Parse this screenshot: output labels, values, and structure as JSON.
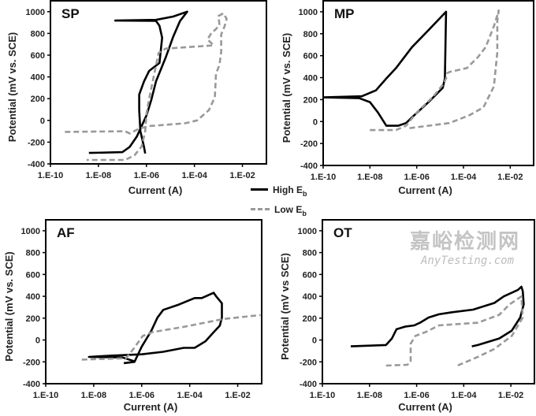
{
  "chart_data": [
    {
      "type": "line",
      "title": "SP",
      "xlabel": "Current (A)",
      "ylabel": "Potential (mV vs. SCE)",
      "xscale": "log",
      "xlim": [
        1e-10,
        0.1
      ],
      "ylim": [
        -400,
        1100
      ],
      "xticks": [
        1e-10,
        1e-08,
        1e-06,
        0.0001,
        0.01
      ],
      "xtick_labels": [
        "1.E-10",
        "1.E-08",
        "1.E-06",
        "1.E-04",
        "1.E-02"
      ],
      "yticks": [
        -400,
        -200,
        0,
        200,
        400,
        600,
        800,
        1000
      ],
      "ytick_labels": [
        "-400",
        "-200",
        "0",
        "200",
        "400",
        "600",
        "800",
        "1000"
      ],
      "grid": false,
      "series": [
        {
          "name": "High Eb",
          "style": "solid",
          "color": "#000000",
          "x": [
            4e-09,
            1e-07,
            2e-07,
            4e-07,
            1e-06,
            1.6e-06,
            2.5e-06,
            6.3e-06,
            1.3e-05,
            2.5e-05,
            5e-05,
            1.3e-05,
            2.5e-06,
            5e-08,
            2.5e-06,
            3.5e-06,
            4.5e-06,
            3.5e-06,
            1.3e-06,
            7.9e-07,
            5e-07,
            5e-07,
            5.6e-07,
            7.9e-07,
            8.9e-07
          ],
          "y": [
            -299,
            -292,
            -244,
            -147,
            45,
            190,
            359,
            576,
            769,
            913,
            1000,
            955,
            925,
            918,
            915,
            870,
            760,
            528,
            455,
            359,
            238,
            94,
            -99,
            -244,
            -304
          ]
        },
        {
          "name": "Low Eb",
          "style": "dashed",
          "color": "#999999",
          "x": [
            4e-10,
            1.3e-07,
            2e-07,
            5e-07,
            1.3e-06,
            4e-05,
            0.00013,
            0.0004,
            0.00071,
            0.00079,
            0.0011,
            0.0013,
            0.0013,
            0.0018,
            0.0022,
            0.0016,
            0.001,
            0.0011,
            0.00079,
            0.0005,
            0.00035,
            0.00063,
            6.3e-06,
            3.2e-06,
            1.3e-06,
            1e-06,
            8.9e-07,
            6.3e-07,
            3.2e-07,
            1.3e-07,
            3.2e-09
          ],
          "y": [
            -106,
            -100,
            -120,
            -75,
            -52,
            -27,
            0,
            94,
            214,
            430,
            510,
            630,
            790,
            865,
            935,
            985,
            960,
            880,
            840,
            800,
            745,
            690,
            660,
            620,
            200,
            60,
            -100,
            -240,
            -320,
            -364,
            -364
          ]
        }
      ]
    },
    {
      "type": "line",
      "title": "MP",
      "xlabel": "Current (A)",
      "ylabel": "Potential (mV vs. SCE)",
      "xscale": "log",
      "xlim": [
        1e-10,
        0.1
      ],
      "ylim": [
        -400,
        1100
      ],
      "xticks": [
        1e-10,
        1e-08,
        1e-06,
        0.0001,
        0.01
      ],
      "xtick_labels": [
        "1.E-10",
        "1.E-08",
        "1.E-06",
        "1.E-04",
        "1.E-02"
      ],
      "yticks": [
        -400,
        -200,
        0,
        200,
        400,
        600,
        800,
        1000
      ],
      "ytick_labels": [
        "-400",
        "-200",
        "0",
        "200",
        "400",
        "600",
        "800",
        "1000"
      ],
      "grid": false,
      "series": [
        {
          "name": "High Eb",
          "style": "solid",
          "color": "#000000",
          "x": [
            1e-10,
            4.5e-09,
            1.8e-08,
            5e-08,
            1.3e-07,
            6.3e-07,
            3.2e-06,
            1.8e-05,
            1.6e-05,
            1.3e-05,
            3.2e-06,
            7.9e-07,
            3.5e-07,
            1.6e-07,
            5e-08,
            2.2e-08,
            1e-08,
            3.5e-09,
            1e-10
          ],
          "y": [
            220,
            230,
            284,
            392,
            487,
            678,
            833,
            1000,
            392,
            308,
            177,
            58,
            -14,
            -38,
            -38,
            82,
            177,
            213,
            220
          ]
        },
        {
          "name": "Low Eb",
          "style": "dashed",
          "color": "#999999",
          "x": [
            1e-08,
            1.3e-07,
            3.5e-07,
            1e-06,
            5e-06,
            1.4e-05,
            1.8e-05,
            2e-05,
            2.5e-05,
            0.00014,
            0.0004,
            0.00089,
            0.002,
            0.0032,
            0.0028,
            0.0028,
            0.002,
            0.00071,
            0.00018,
            2.5e-05,
            4.5e-07
          ],
          "y": [
            -78,
            -78,
            -38,
            82,
            225,
            344,
            392,
            440,
            451,
            487,
            583,
            678,
            869,
            1012,
            917,
            630,
            320,
            129,
            58,
            -14,
            -61
          ]
        }
      ]
    },
    {
      "type": "line",
      "title": "AF",
      "xlabel": "Current (A)",
      "ylabel": "Potential (mV vs. SCE)",
      "xscale": "log",
      "xlim": [
        1e-10,
        0.1
      ],
      "ylim": [
        -400,
        1100
      ],
      "xticks": [
        1e-10,
        1e-08,
        1e-06,
        0.0001,
        0.01
      ],
      "xtick_labels": [
        "1.E-10",
        "1.E-08",
        "1.E-06",
        "1.E-04",
        "1.E-02"
      ],
      "yticks": [
        -400,
        -200,
        0,
        200,
        400,
        600,
        800,
        1000
      ],
      "ytick_labels": [
        "-400",
        "-200",
        "0",
        "200",
        "400",
        "600",
        "800",
        "1000"
      ],
      "grid": false,
      "series": [
        {
          "name": "High Eb",
          "style": "solid",
          "color": "#000000",
          "x": [
            1.8e-07,
            5e-07,
            1e-06,
            2.5e-06,
            4.5e-06,
            7.9e-06,
            3.5e-05,
            0.00016,
            0.00032,
            0.001,
            0.0013,
            0.0022,
            0.0022,
            0.0018,
            0.00089,
            0.00045,
            0.00016,
            5.6e-05,
            7.9e-06,
            1e-06,
            5e-08,
            6.3e-09,
            1.6e-07,
            5e-07
          ],
          "y": [
            -212,
            -200,
            -60,
            84,
            204,
            276,
            324,
            384,
            384,
            432,
            396,
            336,
            204,
            132,
            60,
            -12,
            -72,
            -72,
            -108,
            -131,
            -143,
            -155,
            -160,
            -195
          ]
        },
        {
          "name": "Low Eb",
          "style": "dashed",
          "color": "#999999",
          "x": [
            3.2e-09,
            2.2e-07,
            4.5e-07,
            1.1e-06,
            2.8e-06,
            5.6e-05,
            0.0025,
            0.089
          ],
          "y": [
            -179,
            -167,
            -83,
            36,
            72,
            120,
            192,
            228
          ]
        }
      ]
    },
    {
      "type": "line",
      "title": "OT",
      "xlabel": "Current (A)",
      "ylabel": "Potential (mV vs SCE)",
      "xscale": "log",
      "xlim": [
        1e-10,
        0.1
      ],
      "ylim": [
        -400,
        1100
      ],
      "xticks": [
        1e-10,
        1e-08,
        1e-06,
        0.0001,
        0.01
      ],
      "xtick_labels": [
        "1.E-10",
        "1.E-08",
        "1.E-06",
        "1.E-04",
        "1.E-02"
      ],
      "yticks": [
        -400,
        -200,
        0,
        200,
        400,
        600,
        800,
        1000
      ],
      "ytick_labels": [
        "-400",
        "-200",
        "0",
        "200",
        "400",
        "600",
        "800",
        "1000"
      ],
      "grid": false,
      "series": [
        {
          "name": "High Eb",
          "style": "solid",
          "color": "#000000",
          "x": [
            1.6e-09,
            5e-08,
            8.9e-08,
            1.4e-07,
            3.2e-07,
            7.9e-07,
            1.4e-06,
            3.2e-06,
            8.9e-06,
            3.2e-05,
            0.00025,
            0.002,
            0.005,
            0.02,
            0.028,
            0.032,
            0.035,
            0.025,
            0.011,
            0.0032,
            0.0004,
            0.00022
          ],
          "y": [
            -58,
            -46,
            14,
            98,
            122,
            134,
            158,
            206,
            235,
            254,
            278,
            339,
            399,
            459,
            488,
            447,
            327,
            206,
            86,
            14,
            -46,
            -58
          ]
        },
        {
          "name": "Low Eb",
          "style": "dashed",
          "color": "#999999",
          "x": [
            5e-08,
            4e-07,
            5.6e-07,
            5.6e-07,
            8.9e-07,
            2.5e-06,
            8.9e-06,
            0.0004,
            0.0032,
            0.0089,
            0.028,
            0.032,
            0.011,
            0.002,
            0.0004,
            5e-05
          ],
          "y": [
            -234,
            -227,
            -203,
            -34,
            38,
            74,
            134,
            158,
            230,
            327,
            399,
            206,
            38,
            -82,
            -154,
            -238
          ]
        }
      ]
    }
  ],
  "legend": {
    "placement": "center",
    "items": [
      {
        "label": "High E",
        "sub": "b",
        "style": "solid",
        "color": "#000000"
      },
      {
        "label": "Low E",
        "sub": "b",
        "style": "dashed",
        "color": "#999999"
      }
    ]
  },
  "watermark": {
    "cn": "嘉峪检测网",
    "en": "AnyTesting.com"
  }
}
